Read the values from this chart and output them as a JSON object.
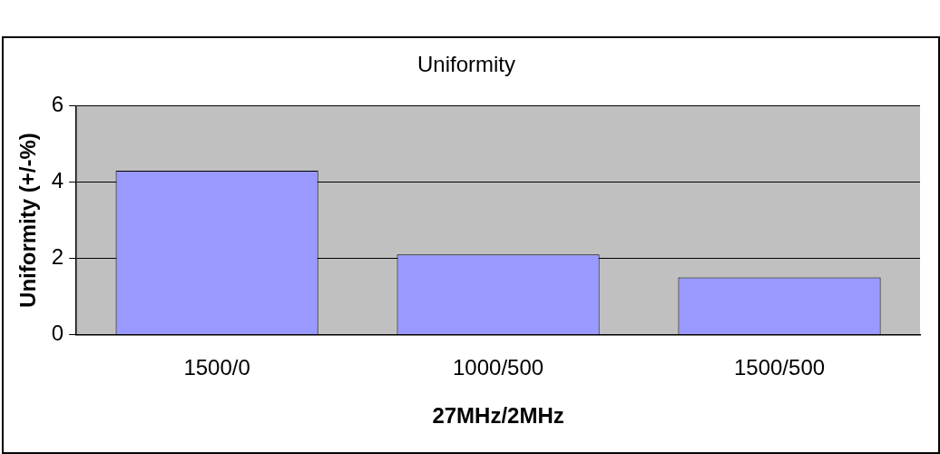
{
  "chart_data": {
    "type": "bar",
    "title": "Uniformity",
    "xlabel": "27MHz/2MHz",
    "ylabel": "Uniformity (+/-%)",
    "categories": [
      "1500/0",
      "1000/500",
      "1500/500"
    ],
    "values": [
      4.3,
      2.1,
      1.5
    ],
    "color": "#9999ff",
    "ylim": [
      0,
      6
    ],
    "yticks": [
      0,
      2,
      4,
      6
    ],
    "grid": "y",
    "legend": false
  }
}
